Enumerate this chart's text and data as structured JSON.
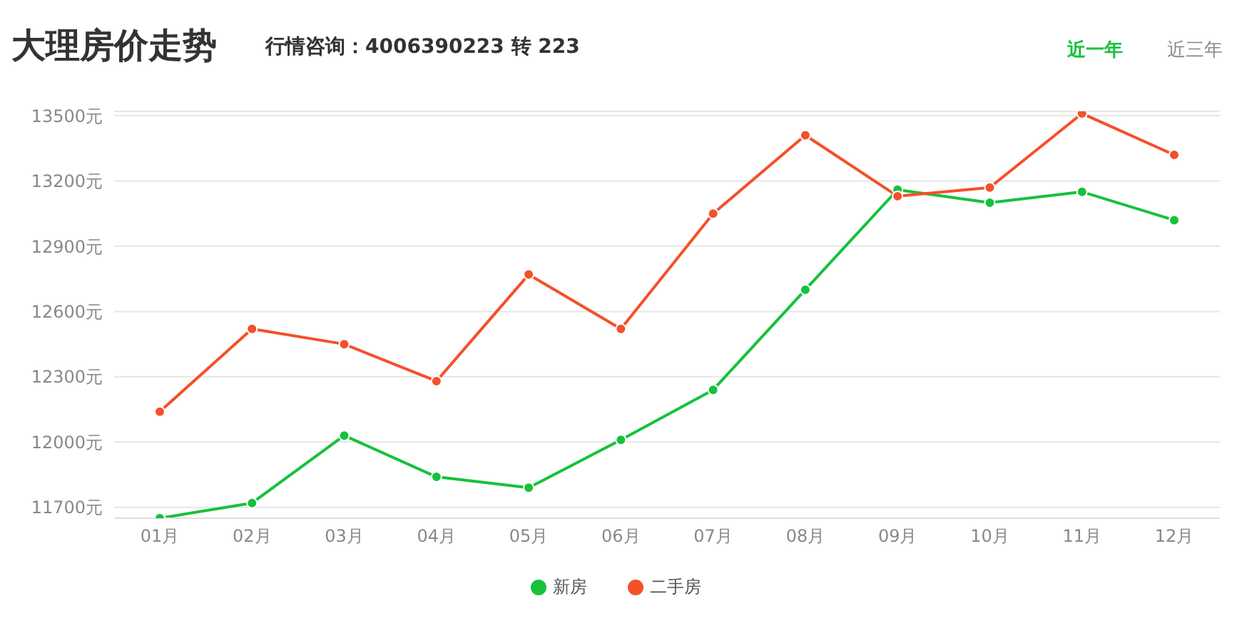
{
  "chart_data": {
    "type": "line",
    "title": "大理房价走势",
    "subtitle": "行情咨询：4006390223 转 223",
    "annotations": [
      "近一年",
      "近三年"
    ],
    "categories": [
      "01月",
      "02月",
      "03月",
      "04月",
      "05月",
      "06月",
      "07月",
      "08月",
      "09月",
      "10月",
      "11月",
      "12月"
    ],
    "series": [
      {
        "name": "新房",
        "color": "#17c13c",
        "values": [
          11650,
          11720,
          12030,
          11840,
          11790,
          12010,
          12240,
          12700,
          13160,
          13100,
          13150,
          13020
        ]
      },
      {
        "name": "二手房",
        "color": "#f4502a",
        "values": [
          12140,
          12520,
          12450,
          12280,
          12770,
          12520,
          13050,
          13410,
          13130,
          13170,
          13510,
          13320
        ]
      }
    ],
    "ylim": [
      11650,
      13520
    ],
    "yticks": [
      {
        "value": 11700,
        "label": "11700元"
      },
      {
        "value": 12000,
        "label": "12000元"
      },
      {
        "value": 12300,
        "label": "12300元"
      },
      {
        "value": 12600,
        "label": "12600元"
      },
      {
        "value": 12900,
        "label": "12900元"
      },
      {
        "value": 13200,
        "label": "13200元"
      },
      {
        "value": 13500,
        "label": "13500元"
      }
    ],
    "grid": "y",
    "legend": "bottom",
    "marker": "circle",
    "line_style": "solid"
  }
}
